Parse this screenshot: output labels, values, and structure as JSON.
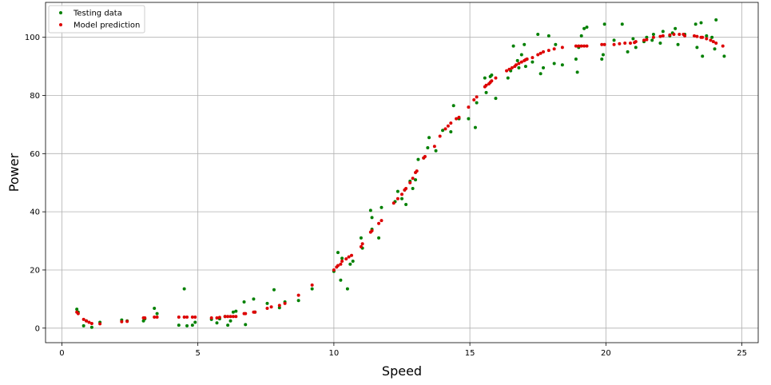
{
  "chart_data": {
    "type": "scatter",
    "title": "",
    "xlabel": "Speed",
    "ylabel": "Power",
    "xlim": [
      -0.6,
      25.6
    ],
    "ylim": [
      -5,
      112
    ],
    "xticks": [
      0,
      5,
      10,
      15,
      20,
      25
    ],
    "yticks": [
      0,
      20,
      40,
      60,
      80,
      100
    ],
    "grid": true,
    "legend": "top-left",
    "series": [
      {
        "name": "Testing data",
        "color": "#008000",
        "points": [
          [
            0.55,
            6.5
          ],
          [
            0.6,
            5.5
          ],
          [
            0.8,
            0.8
          ],
          [
            0.9,
            2.5
          ],
          [
            1.1,
            0.3
          ],
          [
            1.4,
            2.0
          ],
          [
            2.2,
            2.8
          ],
          [
            2.4,
            2.5
          ],
          [
            3.0,
            2.5
          ],
          [
            3.05,
            3.2
          ],
          [
            3.4,
            6.8
          ],
          [
            3.5,
            5.0
          ],
          [
            4.3,
            1.0
          ],
          [
            4.5,
            13.5
          ],
          [
            4.6,
            0.8
          ],
          [
            4.8,
            1.0
          ],
          [
            4.9,
            2.0
          ],
          [
            5.5,
            3.0
          ],
          [
            5.7,
            1.8
          ],
          [
            5.8,
            3.2
          ],
          [
            6.0,
            4.0
          ],
          [
            6.1,
            1.0
          ],
          [
            6.2,
            2.5
          ],
          [
            6.3,
            5.5
          ],
          [
            6.4,
            5.8
          ],
          [
            6.7,
            9.0
          ],
          [
            6.75,
            1.2
          ],
          [
            7.05,
            10.0
          ],
          [
            7.1,
            5.5
          ],
          [
            7.55,
            8.5
          ],
          [
            7.8,
            13.2
          ],
          [
            8.0,
            7.0
          ],
          [
            8.2,
            9.0
          ],
          [
            8.7,
            9.5
          ],
          [
            9.2,
            13.5
          ],
          [
            10.0,
            19.5
          ],
          [
            10.15,
            26.0
          ],
          [
            10.25,
            16.5
          ],
          [
            10.3,
            24.0
          ],
          [
            10.5,
            13.5
          ],
          [
            10.6,
            22.0
          ],
          [
            10.7,
            23.0
          ],
          [
            11.0,
            31.0
          ],
          [
            11.05,
            27.5
          ],
          [
            11.35,
            40.5
          ],
          [
            11.4,
            38.0
          ],
          [
            11.4,
            34.0
          ],
          [
            11.65,
            31.0
          ],
          [
            11.75,
            41.5
          ],
          [
            12.25,
            43.5
          ],
          [
            12.35,
            47.0
          ],
          [
            12.5,
            44.5
          ],
          [
            12.6,
            47.5
          ],
          [
            12.65,
            42.5
          ],
          [
            12.8,
            50.5
          ],
          [
            12.9,
            48.0
          ],
          [
            13.0,
            51.0
          ],
          [
            13.1,
            58.0
          ],
          [
            13.3,
            58.5
          ],
          [
            13.45,
            62.0
          ],
          [
            13.5,
            65.5
          ],
          [
            13.75,
            61.0
          ],
          [
            14.0,
            68.0
          ],
          [
            14.3,
            67.5
          ],
          [
            14.4,
            76.5
          ],
          [
            14.6,
            72.0
          ],
          [
            14.95,
            72.0
          ],
          [
            15.2,
            69.0
          ],
          [
            15.25,
            77.5
          ],
          [
            15.55,
            86.0
          ],
          [
            15.6,
            81.0
          ],
          [
            15.75,
            86.5
          ],
          [
            15.8,
            87.0
          ],
          [
            15.95,
            79.0
          ],
          [
            16.4,
            86.0
          ],
          [
            16.5,
            88.5
          ],
          [
            16.6,
            97.0
          ],
          [
            16.75,
            92.0
          ],
          [
            16.8,
            89.5
          ],
          [
            16.9,
            94.0
          ],
          [
            17.0,
            97.5
          ],
          [
            17.05,
            90.0
          ],
          [
            17.1,
            92.5
          ],
          [
            17.3,
            91.5
          ],
          [
            17.5,
            101.0
          ],
          [
            17.6,
            87.5
          ],
          [
            17.7,
            89.5
          ],
          [
            17.9,
            100.5
          ],
          [
            18.1,
            91.0
          ],
          [
            18.15,
            97.5
          ],
          [
            18.4,
            90.5
          ],
          [
            18.9,
            92.5
          ],
          [
            18.95,
            88.0
          ],
          [
            19.0,
            96.5
          ],
          [
            19.1,
            100.5
          ],
          [
            19.2,
            103.0
          ],
          [
            19.3,
            103.5
          ],
          [
            19.85,
            92.5
          ],
          [
            19.9,
            94.0
          ],
          [
            19.95,
            104.5
          ],
          [
            20.3,
            99.0
          ],
          [
            20.6,
            104.5
          ],
          [
            20.8,
            95.0
          ],
          [
            21.0,
            99.5
          ],
          [
            21.1,
            96.5
          ],
          [
            21.4,
            98.5
          ],
          [
            21.5,
            100.0
          ],
          [
            21.7,
            99.0
          ],
          [
            21.75,
            101.0
          ],
          [
            22.0,
            98.0
          ],
          [
            22.1,
            102.0
          ],
          [
            22.35,
            100.5
          ],
          [
            22.45,
            101.5
          ],
          [
            22.55,
            103.0
          ],
          [
            22.65,
            97.5
          ],
          [
            22.9,
            101.0
          ],
          [
            23.3,
            104.5
          ],
          [
            23.35,
            96.5
          ],
          [
            23.5,
            105.0
          ],
          [
            23.55,
            93.5
          ],
          [
            23.7,
            100.5
          ],
          [
            23.9,
            100.0
          ],
          [
            24.0,
            96.0
          ],
          [
            24.05,
            106.0
          ],
          [
            24.35,
            93.5
          ]
        ]
      },
      {
        "name": "Model prediction",
        "color": "#dd0000",
        "points": [
          [
            0.55,
            5.5
          ],
          [
            0.6,
            5.0
          ],
          [
            0.8,
            3.0
          ],
          [
            0.9,
            2.5
          ],
          [
            1.0,
            2.0
          ],
          [
            1.1,
            1.6
          ],
          [
            1.4,
            1.5
          ],
          [
            2.2,
            2.2
          ],
          [
            2.4,
            2.3
          ],
          [
            3.0,
            3.5
          ],
          [
            3.05,
            3.5
          ],
          [
            3.4,
            3.8
          ],
          [
            3.5,
            3.8
          ],
          [
            4.3,
            3.8
          ],
          [
            4.5,
            3.8
          ],
          [
            4.6,
            3.8
          ],
          [
            4.8,
            3.8
          ],
          [
            4.9,
            3.8
          ],
          [
            5.5,
            3.5
          ],
          [
            5.7,
            3.5
          ],
          [
            5.8,
            3.7
          ],
          [
            6.0,
            4.0
          ],
          [
            6.1,
            4.0
          ],
          [
            6.2,
            4.0
          ],
          [
            6.3,
            4.0
          ],
          [
            6.4,
            4.0
          ],
          [
            6.7,
            5.0
          ],
          [
            6.75,
            5.0
          ],
          [
            7.05,
            5.5
          ],
          [
            7.1,
            5.5
          ],
          [
            7.55,
            6.8
          ],
          [
            7.7,
            7.3
          ],
          [
            8.0,
            7.8
          ],
          [
            8.2,
            8.5
          ],
          [
            8.7,
            11.3
          ],
          [
            9.2,
            14.8
          ],
          [
            10.0,
            20.0
          ],
          [
            10.1,
            21.0
          ],
          [
            10.15,
            21.5
          ],
          [
            10.25,
            22.0
          ],
          [
            10.3,
            23.0
          ],
          [
            10.45,
            23.8
          ],
          [
            10.55,
            24.5
          ],
          [
            10.65,
            25.0
          ],
          [
            11.0,
            28.0
          ],
          [
            11.05,
            29.0
          ],
          [
            11.35,
            33.0
          ],
          [
            11.4,
            33.5
          ],
          [
            11.65,
            36.0
          ],
          [
            11.75,
            37.0
          ],
          [
            12.2,
            43.0
          ],
          [
            12.35,
            44.5
          ],
          [
            12.5,
            46.0
          ],
          [
            12.6,
            47.5
          ],
          [
            12.65,
            48.0
          ],
          [
            12.8,
            50.0
          ],
          [
            12.9,
            51.5
          ],
          [
            13.0,
            53.5
          ],
          [
            13.05,
            54.0
          ],
          [
            13.3,
            58.5
          ],
          [
            13.35,
            59.0
          ],
          [
            13.7,
            62.5
          ],
          [
            13.9,
            66.0
          ],
          [
            14.1,
            68.5
          ],
          [
            14.2,
            69.5
          ],
          [
            14.3,
            70.5
          ],
          [
            14.5,
            72.0
          ],
          [
            14.6,
            72.5
          ],
          [
            14.95,
            76.0
          ],
          [
            15.15,
            78.5
          ],
          [
            15.25,
            79.5
          ],
          [
            15.55,
            83.0
          ],
          [
            15.6,
            83.5
          ],
          [
            15.7,
            84.0
          ],
          [
            15.75,
            84.5
          ],
          [
            15.8,
            85.0
          ],
          [
            15.95,
            86.0
          ],
          [
            16.35,
            88.5
          ],
          [
            16.45,
            89.0
          ],
          [
            16.55,
            89.5
          ],
          [
            16.65,
            90.0
          ],
          [
            16.7,
            90.5
          ],
          [
            16.8,
            91.0
          ],
          [
            16.9,
            91.5
          ],
          [
            17.0,
            92.0
          ],
          [
            17.05,
            92.3
          ],
          [
            17.1,
            92.5
          ],
          [
            17.3,
            93.0
          ],
          [
            17.5,
            94.0
          ],
          [
            17.6,
            94.5
          ],
          [
            17.7,
            95.0
          ],
          [
            17.9,
            95.5
          ],
          [
            18.1,
            96.0
          ],
          [
            18.4,
            96.5
          ],
          [
            18.9,
            97.0
          ],
          [
            19.0,
            97.0
          ],
          [
            19.1,
            97.0
          ],
          [
            19.2,
            97.0
          ],
          [
            19.3,
            97.0
          ],
          [
            19.85,
            97.5
          ],
          [
            19.95,
            97.5
          ],
          [
            20.3,
            97.5
          ],
          [
            20.5,
            97.8
          ],
          [
            20.7,
            98.0
          ],
          [
            20.9,
            98.0
          ],
          [
            21.05,
            98.2
          ],
          [
            21.1,
            98.5
          ],
          [
            21.4,
            99.0
          ],
          [
            21.5,
            99.2
          ],
          [
            21.75,
            100.0
          ],
          [
            22.0,
            100.3
          ],
          [
            22.1,
            100.5
          ],
          [
            22.35,
            100.8
          ],
          [
            22.5,
            101.0
          ],
          [
            22.7,
            101.0
          ],
          [
            22.85,
            101.0
          ],
          [
            22.9,
            100.5
          ],
          [
            23.25,
            100.5
          ],
          [
            23.35,
            100.3
          ],
          [
            23.5,
            100.0
          ],
          [
            23.55,
            100.0
          ],
          [
            23.7,
            99.5
          ],
          [
            23.85,
            99.0
          ],
          [
            23.95,
            98.5
          ],
          [
            24.05,
            98.0
          ],
          [
            24.3,
            97.0
          ]
        ]
      }
    ]
  }
}
